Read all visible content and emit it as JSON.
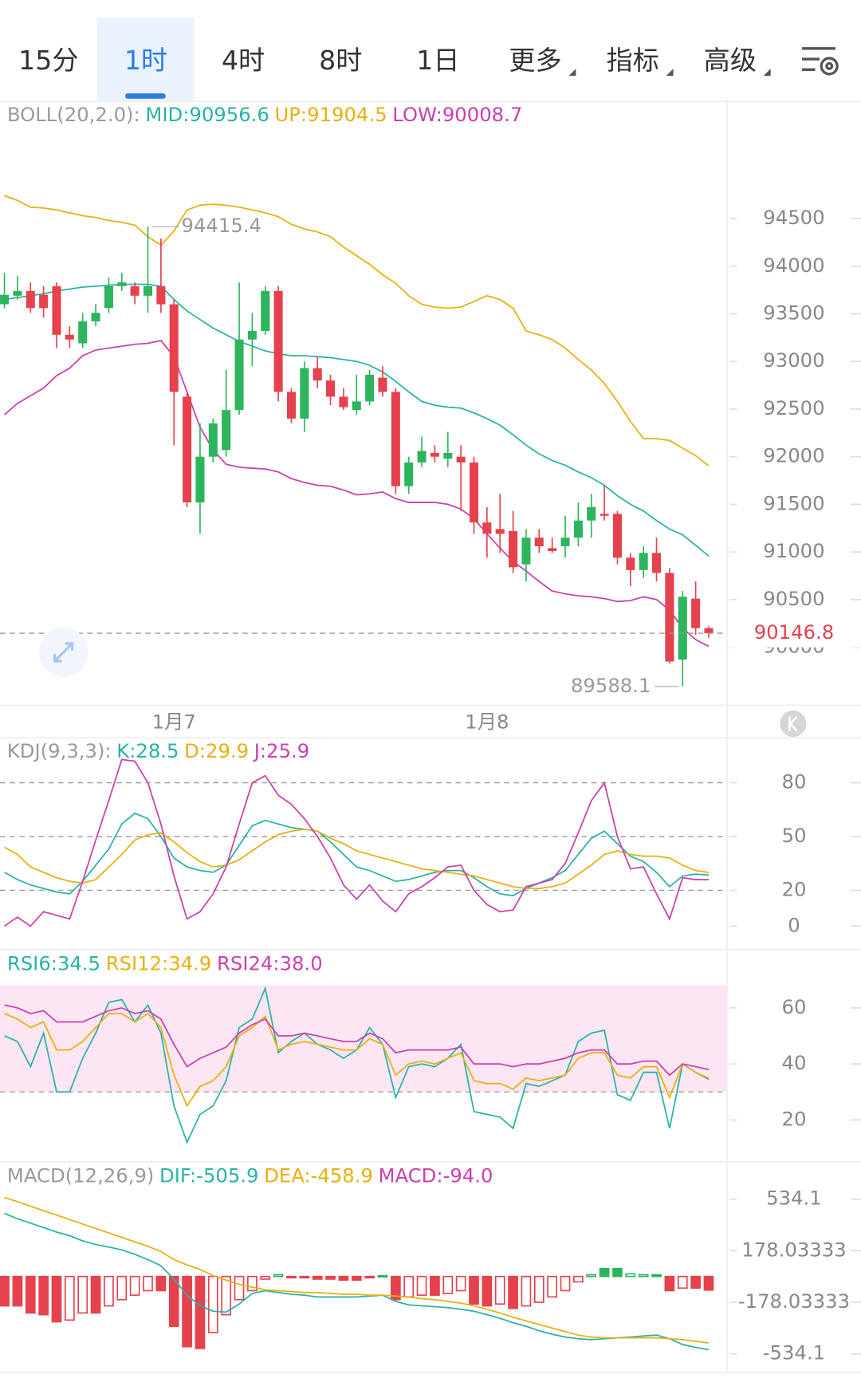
{
  "tabs": {
    "items": [
      {
        "label": "15分"
      },
      {
        "label": "1时"
      },
      {
        "label": "4时"
      },
      {
        "label": "8时"
      },
      {
        "label": "1日"
      },
      {
        "label": "更多",
        "dropdown": true
      },
      {
        "label": "指标",
        "dropdown": true
      },
      {
        "label": "高级",
        "dropdown": true
      }
    ],
    "active": 1
  },
  "price": {
    "type": "candlestick",
    "header": [
      {
        "text": "BOLL(20,2.0):",
        "color": "#9a9a9a"
      },
      {
        "text": "MID:90956.6",
        "color": "#2ab3a6"
      },
      {
        "text": "UP:91904.5",
        "color": "#e8b00f"
      },
      {
        "text": "LOW:90008.7",
        "color": "#cc3fae"
      }
    ],
    "up_color": "#2db55d",
    "down_color": "#e5424d",
    "open": [
      93600,
      93690,
      93740,
      93700,
      93790,
      93280,
      93190,
      93420,
      93560,
      93790,
      93790,
      93690,
      93790,
      93600,
      92630,
      91520,
      92000,
      92070,
      92490,
      93230,
      93320,
      93740,
      92680,
      92400,
      92930,
      92800,
      92630,
      92490,
      92580,
      92830,
      92680,
      91690,
      91940,
      92040,
      91980,
      92000,
      91940,
      91310,
      91240,
      91220,
      90870,
      91150,
      91040,
      91060,
      91150,
      91330,
      91400,
      91400,
      90940,
      90810,
      90990,
      90780,
      89870,
      90510,
      90200
    ],
    "high": [
      93930,
      93900,
      93830,
      93790,
      93830,
      93370,
      93510,
      93600,
      93880,
      93930,
      93830,
      94415.4,
      94290,
      93650,
      92680,
      92350,
      92400,
      92910,
      93830,
      93510,
      93790,
      93790,
      92720,
      93000,
      93050,
      92860,
      92720,
      92860,
      92910,
      92950,
      92720,
      92000,
      92210,
      92120,
      92260,
      92120,
      92000,
      91470,
      91610,
      91430,
      91240,
      91240,
      91150,
      91380,
      91520,
      91610,
      91700,
      91430,
      90990,
      91060,
      91150,
      90830,
      90590,
      90690,
      90220
    ],
    "low": [
      93560,
      93650,
      93510,
      93460,
      93140,
      93140,
      93140,
      93370,
      93510,
      93740,
      93600,
      93510,
      93510,
      92120,
      91470,
      91190,
      91940,
      92000,
      92440,
      92950,
      93280,
      92580,
      92350,
      92260,
      92720,
      92540,
      92490,
      92440,
      92540,
      92630,
      91610,
      91610,
      91890,
      91940,
      91890,
      91430,
      91190,
      90940,
      90990,
      90780,
      90690,
      90990,
      90990,
      90940,
      91060,
      91150,
      91330,
      90870,
      90640,
      90730,
      90690,
      89830,
      89588.1,
      90130,
      90100
    ],
    "close": [
      93700,
      93740,
      93560,
      93560,
      93280,
      93230,
      93420,
      93510,
      93790,
      93830,
      93690,
      93790,
      93600,
      92680,
      91520,
      92000,
      92350,
      92490,
      93230,
      93320,
      93740,
      92680,
      92400,
      92930,
      92800,
      92630,
      92520,
      92580,
      92860,
      92680,
      91690,
      91940,
      92060,
      92000,
      92040,
      91940,
      91310,
      91190,
      91190,
      90840,
      91150,
      91060,
      91010,
      91150,
      91330,
      91470,
      91380,
      90940,
      90810,
      90990,
      90780,
      89850,
      90530,
      90200,
      90146.8
    ],
    "boll": [
      {
        "key": "up",
        "color": "#e8b00f",
        "values": [
          94740,
          94690,
          94620,
          94610,
          94590,
          94560,
          94530,
          94510,
          94480,
          94460,
          94430,
          94310,
          94220,
          94370,
          94590,
          94640,
          94650,
          94640,
          94620,
          94590,
          94560,
          94520,
          94440,
          94390,
          94360,
          94310,
          94200,
          94110,
          94020,
          93910,
          93820,
          93690,
          93600,
          93570,
          93560,
          93570,
          93630,
          93690,
          93650,
          93560,
          93320,
          93280,
          93230,
          93140,
          93020,
          92910,
          92770,
          92580,
          92370,
          92190,
          92190,
          92170,
          92090,
          92010,
          91904.5
        ]
      },
      {
        "key": "mid",
        "color": "#2ab3a6",
        "values": [
          93650,
          93670,
          93690,
          93710,
          93740,
          93760,
          93780,
          93790,
          93800,
          93810,
          93810,
          93810,
          93790,
          93650,
          93530,
          93440,
          93350,
          93280,
          93210,
          93160,
          93110,
          93080,
          93060,
          93060,
          93050,
          93040,
          93020,
          93000,
          92960,
          92890,
          92790,
          92680,
          92580,
          92540,
          92520,
          92510,
          92460,
          92400,
          92330,
          92230,
          92120,
          92030,
          91960,
          91910,
          91840,
          91780,
          91700,
          91590,
          91500,
          91430,
          91330,
          91240,
          91180,
          91070,
          90956.6
        ]
      },
      {
        "key": "low",
        "color": "#cc3fae",
        "values": [
          92440,
          92560,
          92640,
          92720,
          92850,
          92930,
          93060,
          93120,
          93140,
          93160,
          93180,
          93190,
          93220,
          93050,
          92680,
          92310,
          92070,
          91920,
          91890,
          91880,
          91870,
          91840,
          91770,
          91730,
          91700,
          91690,
          91650,
          91600,
          91610,
          91630,
          91560,
          91520,
          91520,
          91520,
          91500,
          91450,
          91350,
          91190,
          91040,
          90900,
          90800,
          90690,
          90590,
          90560,
          90540,
          90530,
          90510,
          90480,
          90490,
          90530,
          90500,
          90390,
          90200,
          90080,
          90008.7
        ]
      }
    ],
    "ylim": [
      89410,
      95730
    ],
    "yticks": [
      94500,
      94000,
      93500,
      93000,
      92500,
      92000,
      91500,
      91000,
      90500,
      90000
    ],
    "high_mark": 11,
    "low_mark": 52,
    "last_color": "#e5424d",
    "date_labels": [
      {
        "at": 13,
        "label": "1月7"
      },
      {
        "at": 37,
        "label": "1月8"
      }
    ]
  },
  "kdj": {
    "type": "line",
    "header": [
      {
        "text": "KDJ(9,3,3):",
        "color": "#9a9a9a"
      },
      {
        "text": "K:28.5",
        "color": "#2ab3a6"
      },
      {
        "text": "D:29.9",
        "color": "#e8b00f"
      },
      {
        "text": "J:25.9",
        "color": "#cc3fae"
      }
    ],
    "ylim": [
      -12,
      104.6
    ],
    "yticks": [
      80,
      50,
      20,
      0
    ],
    "dashed_levels": [
      80,
      50,
      20
    ],
    "series": [
      {
        "name": "K",
        "color": "#2ab3a6",
        "values": [
          30,
          26,
          23,
          21,
          19,
          18,
          25,
          34,
          43,
          57,
          63,
          60,
          50,
          38,
          33,
          31,
          30,
          34,
          45,
          56,
          59,
          57,
          55,
          54,
          53,
          47,
          40,
          33,
          31,
          28,
          25,
          26,
          28,
          30,
          31,
          31,
          27,
          22,
          18,
          17,
          21,
          24,
          27,
          31,
          40,
          49,
          53,
          46,
          39,
          36,
          30,
          22,
          28,
          29,
          28.5
        ]
      },
      {
        "name": "D",
        "color": "#e8b00f",
        "values": [
          44,
          40,
          33,
          30,
          27,
          25,
          24,
          26,
          33,
          40,
          48,
          51,
          52,
          47,
          41,
          36,
          33,
          34,
          37,
          42,
          47,
          51,
          53,
          54,
          53,
          49,
          46,
          42,
          40,
          38,
          36,
          34,
          32,
          31,
          30,
          29,
          28,
          26,
          24,
          22,
          21,
          21,
          22,
          24,
          29,
          34,
          40,
          42,
          40,
          39,
          39,
          38,
          34,
          31,
          29.9
        ]
      },
      {
        "name": "J",
        "color": "#cc3fae",
        "values": [
          0,
          5,
          0,
          8,
          6,
          4,
          25,
          48,
          70,
          93,
          92,
          80,
          57,
          28,
          4,
          8,
          18,
          33,
          57,
          80,
          84,
          73,
          68,
          60,
          50,
          38,
          23,
          15,
          23,
          14,
          8,
          18,
          22,
          27,
          33,
          34,
          20,
          12,
          8,
          9,
          22,
          24,
          26,
          35,
          52,
          70,
          80,
          50,
          32,
          33,
          18,
          4,
          27,
          26,
          25.9
        ]
      }
    ]
  },
  "rsi": {
    "type": "line",
    "header": [
      {
        "text": "RSI6:34.5",
        "color": "#2ab3a6"
      },
      {
        "text": "RSI12:34.9",
        "color": "#e8b00f"
      },
      {
        "text": "RSI24:38.0",
        "color": "#cc3fae"
      }
    ],
    "ylim": [
      6,
      68
    ],
    "yticks": [
      60,
      40,
      20
    ],
    "band": [
      30,
      70
    ],
    "band_color": "#fce6f4",
    "dashed_levels": [
      30
    ],
    "series": [
      {
        "name": "RSI6",
        "color": "#2ab3a6",
        "values": [
          50,
          48,
          39,
          51,
          30,
          30,
          42,
          51,
          62,
          63,
          55,
          61,
          51,
          25,
          12,
          22,
          25,
          34,
          53,
          56,
          67,
          44,
          48,
          51,
          47,
          45,
          42,
          45,
          53,
          47,
          28,
          39,
          40,
          39,
          42,
          47,
          23,
          22,
          21,
          17,
          33,
          32,
          34,
          36,
          48,
          51,
          52,
          29,
          27,
          37,
          37,
          17,
          40,
          37,
          34.5
        ]
      },
      {
        "name": "RSI12",
        "color": "#e8b00f",
        "values": [
          58,
          56,
          53,
          55,
          45,
          45,
          48,
          53,
          58,
          58,
          55,
          58,
          53,
          36,
          25,
          32,
          34,
          39,
          50,
          53,
          57,
          45,
          47,
          48,
          47,
          46,
          45,
          45,
          49,
          47,
          36,
          40,
          41,
          40,
          42,
          44,
          34,
          33,
          33,
          31,
          35,
          34,
          35,
          36,
          42,
          44,
          44,
          36,
          35,
          39,
          39,
          28,
          40,
          37,
          34.9
        ]
      },
      {
        "name": "RSI24",
        "color": "#cc3fae",
        "values": [
          61,
          60,
          58,
          59,
          55,
          55,
          55,
          57,
          59,
          60,
          58,
          59,
          56,
          47,
          39,
          42,
          44,
          46,
          51,
          54,
          56,
          50,
          50,
          51,
          50,
          49,
          48,
          48,
          51,
          49,
          44,
          45,
          45,
          45,
          45,
          46,
          40,
          40,
          40,
          39,
          40,
          40,
          41,
          42,
          44,
          45,
          45,
          40,
          40,
          41,
          41,
          36,
          40,
          39,
          38
        ]
      }
    ]
  },
  "macd": {
    "type": "macd",
    "header": [
      {
        "text": "MACD(12,26,9)",
        "color": "#9a9a9a"
      },
      {
        "text": "DIF:-505.9",
        "color": "#2ab3a6"
      },
      {
        "text": "DEA:-458.9",
        "color": "#e8b00f"
      },
      {
        "text": "MACD:-94.0",
        "color": "#cc3fae"
      }
    ],
    "ylim": [
      -663,
      792
    ],
    "yticks": [
      534.1,
      178.03333,
      -178.03333,
      -534.1
    ],
    "hist_up_color": "#2db55d",
    "hist_down_color": "#e5424d",
    "hist": [
      -203,
      -203,
      -252,
      -264,
      -313,
      -301,
      -252,
      -252,
      -203,
      -160,
      -129,
      -98,
      -98,
      -344,
      -485,
      -497,
      -387,
      -264,
      -160,
      -98,
      -18,
      12,
      -6,
      -6,
      -18,
      -18,
      -25,
      -25,
      -6,
      6,
      -160,
      -141,
      -129,
      -129,
      -117,
      -98,
      -190,
      -203,
      -190,
      -221,
      -203,
      -178,
      -141,
      -98,
      -37,
      12,
      55,
      55,
      18,
      12,
      12,
      -98,
      -80,
      -80,
      -94
    ],
    "series": [
      {
        "name": "DIF",
        "color": "#2ab3a6",
        "values": [
          436,
          399,
          368,
          338,
          307,
          282,
          246,
          221,
          203,
          184,
          153,
          117,
          74,
          -18,
          -129,
          -203,
          -240,
          -246,
          -190,
          -117,
          -98,
          -111,
          -123,
          -129,
          -141,
          -141,
          -141,
          -141,
          -135,
          -129,
          -172,
          -196,
          -203,
          -209,
          -215,
          -227,
          -240,
          -264,
          -289,
          -319,
          -344,
          -375,
          -399,
          -418,
          -430,
          -436,
          -430,
          -424,
          -418,
          -411,
          -405,
          -430,
          -470,
          -490,
          -505.9
        ]
      },
      {
        "name": "DEA",
        "color": "#e8b00f",
        "values": [
          546,
          516,
          485,
          454,
          424,
          393,
          362,
          332,
          301,
          270,
          239,
          209,
          172,
          117,
          80,
          49,
          6,
          -25,
          -55,
          -74,
          -92,
          -98,
          -104,
          -111,
          -111,
          -117,
          -123,
          -123,
          -129,
          -129,
          -135,
          -141,
          -154,
          -160,
          -172,
          -184,
          -203,
          -227,
          -252,
          -282,
          -307,
          -332,
          -356,
          -381,
          -405,
          -418,
          -424,
          -424,
          -424,
          -424,
          -424,
          -430,
          -436,
          -448,
          -458.9
        ]
      }
    ]
  }
}
